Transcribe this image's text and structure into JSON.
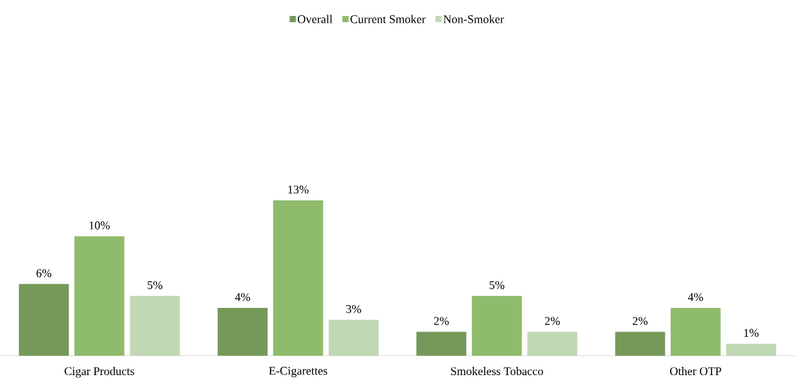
{
  "chart_data": {
    "type": "bar",
    "categories": [
      "Cigar Products",
      "E-Cigarettes",
      "Smokeless Tobacco",
      "Other OTP"
    ],
    "series": [
      {
        "name": "Overall",
        "color": "#76995a",
        "values": [
          6,
          4,
          2,
          2
        ],
        "value_labels": [
          "6%",
          "4%",
          "2%",
          "2%"
        ]
      },
      {
        "name": "Current Smoker",
        "color": "#8fbb6c",
        "values": [
          10,
          13,
          5,
          4
        ],
        "value_labels": [
          "10%",
          "13%",
          "5%",
          "4%"
        ]
      },
      {
        "name": "Non-Smoker",
        "color": "#c1d8b4",
        "values": [
          5,
          3,
          2,
          1
        ],
        "value_labels": [
          "5%",
          "3%",
          "2%",
          "1%"
        ]
      }
    ],
    "tick_labels": "x",
    "legend": "top"
  }
}
